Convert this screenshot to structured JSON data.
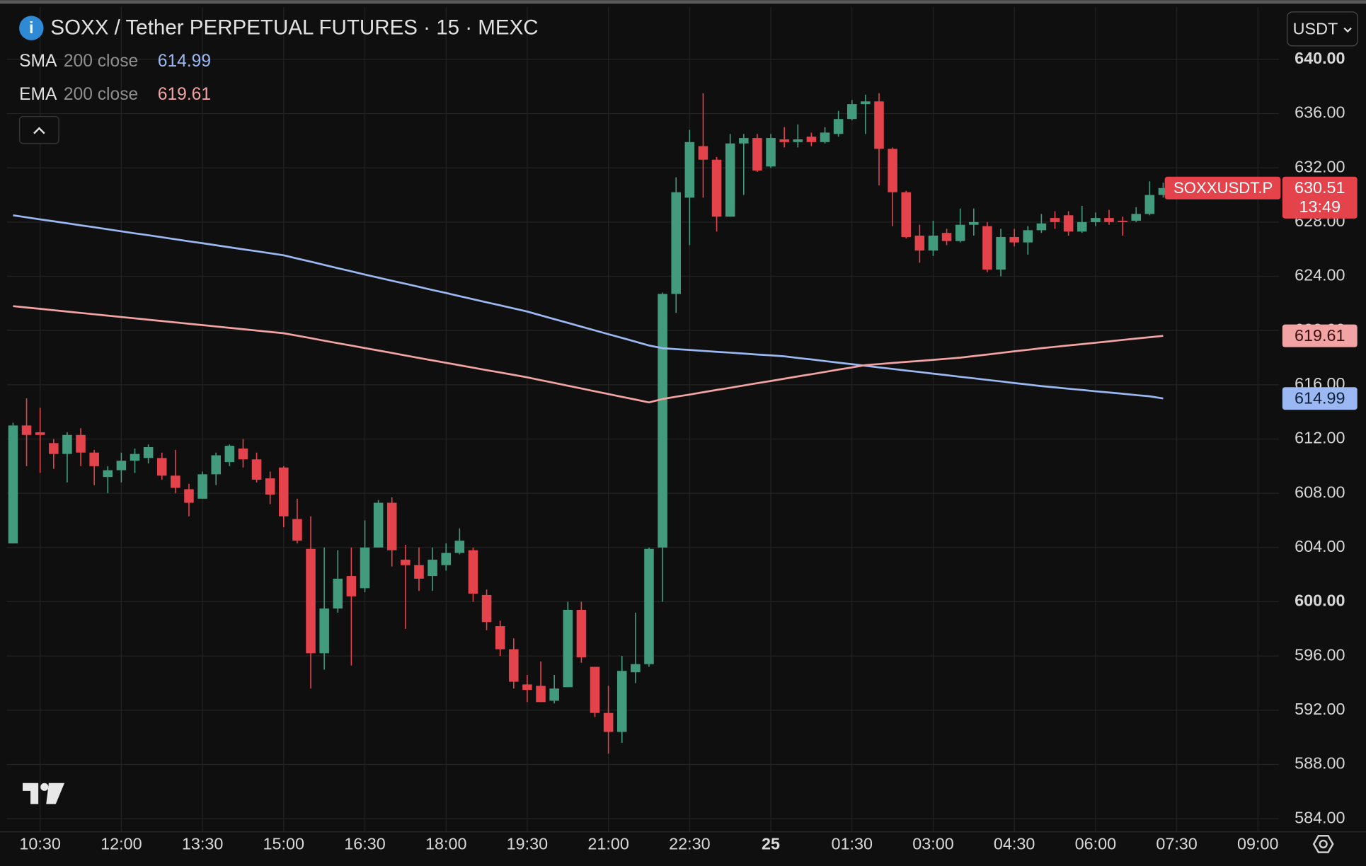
{
  "chart_data": {
    "type": "candlestick",
    "title": "SOXX / Tether PERPETUAL FUTURES · 15 · MEXC",
    "currency": "USDT",
    "symbol_label": "SOXXUSDT.P",
    "countdown": "13:49",
    "up_color": "#439b7e",
    "down_color": "#e5434c",
    "grid": true,
    "open": [
      604.3,
      613.0,
      612.5,
      611.7,
      610.9,
      612.3,
      611.0,
      609.2,
      609.7,
      610.4,
      610.6,
      610.6,
      609.3,
      608.3,
      607.6,
      609.4,
      610.3,
      611.3,
      610.5,
      609.1,
      609.9,
      606.1,
      603.9,
      596.2,
      599.5,
      601.9,
      601.0,
      604.0,
      607.3,
      603.1,
      602.7,
      601.9,
      602.7,
      603.6,
      603.8,
      600.5,
      598.2,
      596.5,
      593.9,
      593.8,
      592.7,
      593.7,
      599.4,
      595.2,
      591.8,
      590.4,
      594.8,
      595.4,
      604.0,
      622.7,
      629.8,
      633.6,
      632.6,
      628.4,
      633.8,
      634.2,
      632.1,
      634.1,
      633.9,
      634.3,
      633.9,
      634.5,
      635.6,
      636.7,
      636.9,
      633.4,
      630.2,
      627.0,
      625.9,
      627.2,
      626.6,
      627.8,
      627.7,
      624.5,
      626.9,
      626.5,
      627.4,
      628.3,
      628.5,
      627.3,
      628.0,
      628.3,
      628.1,
      628.1,
      628.6,
      630.0
    ],
    "high": [
      613.2,
      615.0,
      614.3,
      612.0,
      612.5,
      612.8,
      611.2,
      610.0,
      611.0,
      611.3,
      611.6,
      611.0,
      611.2,
      608.7,
      609.6,
      611.0,
      611.6,
      612.0,
      611.0,
      609.6,
      610.0,
      607.6,
      606.3,
      604.0,
      603.8,
      604.0,
      606.0,
      607.5,
      607.7,
      604.2,
      604.0,
      604.0,
      604.3,
      605.4,
      604.0,
      600.9,
      598.6,
      597.3,
      594.6,
      595.6,
      594.6,
      600.0,
      600.0,
      595.2,
      593.8,
      596.0,
      599.2,
      604.0,
      622.8,
      631.3,
      634.8,
      637.5,
      632.8,
      634.5,
      634.5,
      634.5,
      634.5,
      635.0,
      635.2,
      634.6,
      635.0,
      636.2,
      637.0,
      637.4,
      637.5,
      633.5,
      630.3,
      627.8,
      628.1,
      627.5,
      629.0,
      629.0,
      628.0,
      627.5,
      627.5,
      627.7,
      628.6,
      628.8,
      628.8,
      629.2,
      628.7,
      628.9,
      628.4,
      629.1,
      631.0,
      630.9
    ],
    "low": [
      604.3,
      610.0,
      609.5,
      609.8,
      608.8,
      610.0,
      608.6,
      608.0,
      608.8,
      609.5,
      610.2,
      609.0,
      608.0,
      606.3,
      607.6,
      608.6,
      610.0,
      609.9,
      608.8,
      607.2,
      605.5,
      604.3,
      593.6,
      595.0,
      599.2,
      595.3,
      600.7,
      604.0,
      602.6,
      598.0,
      600.8,
      600.8,
      602.3,
      603.5,
      600.0,
      597.9,
      596.0,
      593.6,
      592.6,
      592.6,
      592.5,
      593.7,
      595.5,
      591.5,
      588.8,
      589.6,
      594.0,
      595.2,
      600.0,
      621.3,
      626.3,
      629.8,
      627.3,
      628.4,
      630.0,
      631.7,
      632.0,
      633.5,
      633.5,
      633.6,
      633.8,
      634.3,
      635.5,
      634.5,
      630.7,
      627.7,
      626.8,
      625.0,
      625.5,
      626.3,
      626.5,
      627.0,
      624.3,
      624.0,
      626.2,
      625.6,
      627.2,
      627.5,
      627.0,
      627.2,
      627.7,
      627.8,
      627.0,
      628.0,
      628.5,
      629.8
    ],
    "close": [
      613.0,
      612.3,
      612.3,
      610.9,
      612.3,
      611.0,
      610.0,
      609.7,
      610.4,
      610.9,
      611.4,
      609.3,
      608.4,
      607.3,
      609.4,
      610.8,
      611.5,
      610.5,
      609.0,
      607.9,
      606.3,
      604.5,
      596.2,
      599.5,
      601.7,
      600.4,
      604.0,
      607.3,
      603.8,
      602.7,
      601.7,
      603.1,
      603.6,
      604.5,
      600.6,
      598.5,
      596.5,
      594.1,
      593.5,
      592.6,
      593.6,
      599.4,
      595.9,
      591.8,
      590.4,
      594.9,
      595.4,
      603.9,
      622.7,
      630.2,
      633.9,
      632.6,
      628.4,
      633.8,
      634.2,
      631.8,
      634.2,
      633.9,
      634.1,
      633.9,
      634.6,
      635.6,
      636.7,
      636.9,
      633.4,
      630.2,
      626.9,
      625.9,
      627.0,
      626.6,
      627.8,
      628.0,
      624.5,
      626.9,
      626.5,
      627.4,
      627.9,
      628.0,
      627.3,
      628.0,
      628.3,
      628.0,
      628.0,
      628.6,
      630.0,
      630.51
    ],
    "series": [
      {
        "name": "SMA",
        "settings": "200 close",
        "color": "#9bb8f2",
        "badge_text_color": "#10203a",
        "values": [
          628.5,
          628.35,
          628.2,
          628.06,
          627.91,
          627.76,
          627.62,
          627.47,
          627.32,
          627.17,
          627.03,
          626.88,
          626.73,
          626.58,
          626.44,
          626.29,
          626.14,
          625.99,
          625.85,
          625.7,
          625.55,
          625.31,
          625.08,
          624.84,
          624.6,
          624.37,
          624.13,
          623.9,
          623.67,
          623.45,
          623.22,
          622.99,
          622.77,
          622.54,
          622.31,
          622.08,
          621.86,
          621.63,
          621.4,
          621.12,
          620.84,
          620.57,
          620.29,
          620.01,
          619.73,
          619.46,
          619.18,
          618.9,
          618.7,
          618.63,
          618.57,
          618.5,
          618.43,
          618.37,
          618.3,
          618.23,
          618.17,
          618.1,
          617.98,
          617.87,
          617.75,
          617.63,
          617.52,
          617.4,
          617.28,
          617.17,
          617.05,
          616.94,
          616.82,
          616.71,
          616.59,
          616.48,
          616.36,
          616.25,
          616.13,
          616.02,
          615.9,
          615.81,
          615.71,
          615.62,
          615.52,
          615.43,
          615.34,
          615.24,
          615.15,
          614.99
        ]
      },
      {
        "name": "EMA",
        "settings": "200 close",
        "color": "#f2a3a3",
        "badge_text_color": "#3a1010",
        "values": [
          621.8,
          621.7,
          621.6,
          621.5,
          621.4,
          621.3,
          621.2,
          621.1,
          621.0,
          620.9,
          620.8,
          620.7,
          620.6,
          620.5,
          620.4,
          620.3,
          620.2,
          620.1,
          620.0,
          619.9,
          619.8,
          619.62,
          619.44,
          619.25,
          619.07,
          618.89,
          618.71,
          618.53,
          618.35,
          618.16,
          617.98,
          617.8,
          617.62,
          617.44,
          617.26,
          617.08,
          616.91,
          616.73,
          616.55,
          616.34,
          616.14,
          615.93,
          615.73,
          615.52,
          615.32,
          615.11,
          614.91,
          614.7,
          614.95,
          615.12,
          615.28,
          615.45,
          615.62,
          615.78,
          615.95,
          616.12,
          616.28,
          616.45,
          616.62,
          616.78,
          616.95,
          617.12,
          617.28,
          617.45,
          617.53,
          617.61,
          617.69,
          617.76,
          617.84,
          617.92,
          618.0,
          618.12,
          618.23,
          618.35,
          618.47,
          618.58,
          618.7,
          618.8,
          618.9,
          619.0,
          619.1,
          619.2,
          619.31,
          619.41,
          619.51,
          619.61
        ]
      }
    ],
    "xlim": [
      -0.45,
      93.55
    ],
    "xticks": [
      {
        "value": 2,
        "label": "10:30"
      },
      {
        "value": 8,
        "label": "12:00"
      },
      {
        "value": 14,
        "label": "13:30"
      },
      {
        "value": 20,
        "label": "15:00"
      },
      {
        "value": 26,
        "label": "16:30"
      },
      {
        "value": 32,
        "label": "18:00"
      },
      {
        "value": 38,
        "label": "19:30"
      },
      {
        "value": 44,
        "label": "21:00"
      },
      {
        "value": 50,
        "label": "22:30"
      },
      {
        "value": 56,
        "label": "25",
        "bold": true
      },
      {
        "value": 62,
        "label": "01:30"
      },
      {
        "value": 68,
        "label": "03:00"
      },
      {
        "value": 74,
        "label": "04:30"
      },
      {
        "value": 80,
        "label": "06:00"
      },
      {
        "value": 86,
        "label": "07:30"
      },
      {
        "value": 92,
        "label": "09:00"
      }
    ],
    "ylim": [
      583.03,
      643.85
    ],
    "yticks": [
      {
        "value": 584,
        "label": "584.00"
      },
      {
        "value": 588,
        "label": "588.00"
      },
      {
        "value": 592,
        "label": "592.00"
      },
      {
        "value": 596,
        "label": "596.00"
      },
      {
        "value": 600,
        "label": "600.00",
        "bold": true
      },
      {
        "value": 604,
        "label": "604.00"
      },
      {
        "value": 608,
        "label": "608.00"
      },
      {
        "value": 612,
        "label": "612.00"
      },
      {
        "value": 616,
        "label": "616.00"
      },
      {
        "value": 620,
        "label": "620.00"
      },
      {
        "value": 624,
        "label": "624.00"
      },
      {
        "value": 628,
        "label": "628.00"
      },
      {
        "value": 632,
        "label": "632.00"
      },
      {
        "value": 636,
        "label": "636.00"
      },
      {
        "value": 640,
        "label": "640.00",
        "bold": true
      }
    ]
  }
}
